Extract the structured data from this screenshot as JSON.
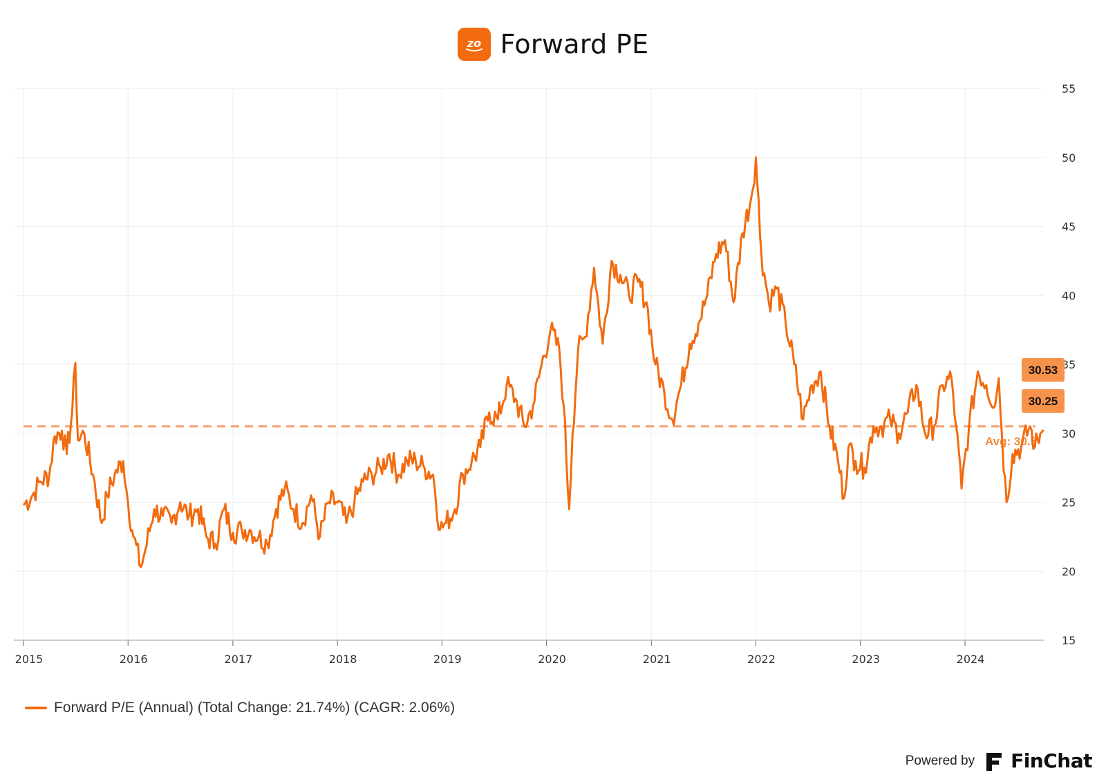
{
  "header": {
    "title": "Forward PE",
    "logo_text": "zo"
  },
  "chart_data": {
    "type": "line",
    "title": "Forward PE",
    "xlabel": "",
    "ylabel": "",
    "x_ticks": [
      "2015",
      "2016",
      "2017",
      "2018",
      "2019",
      "2020",
      "2021",
      "2022",
      "2023",
      "2024"
    ],
    "y_ticks": [
      15,
      20,
      25,
      30,
      35,
      40,
      45,
      50,
      55
    ],
    "ylim": [
      15,
      55
    ],
    "xlim": [
      "2015-01-01",
      "2024-10-15"
    ],
    "y_axis_position": "right",
    "grid": true,
    "average": {
      "value": 30.5,
      "label": "Avg: 30.5"
    },
    "end_labels": [
      30.53,
      30.25
    ],
    "series": [
      {
        "name": "Forward P/E (Annual) (Total Change: 21.74%) (CAGR: 2.06%)",
        "color": "#f26b0f",
        "points": [
          [
            "2015-01-01",
            24.8
          ],
          [
            "2015-02-01",
            25.5
          ],
          [
            "2015-03-01",
            26.5
          ],
          [
            "2015-04-01",
            27.0
          ],
          [
            "2015-04-20",
            29.8
          ],
          [
            "2015-05-15",
            30.2
          ],
          [
            "2015-06-01",
            28.5
          ],
          [
            "2015-06-20",
            31.5
          ],
          [
            "2015-07-01",
            35.1
          ],
          [
            "2015-07-10",
            29.5
          ],
          [
            "2015-08-01",
            30.0
          ],
          [
            "2015-09-01",
            27.0
          ],
          [
            "2015-10-01",
            23.5
          ],
          [
            "2015-10-20",
            25.5
          ],
          [
            "2015-11-15",
            27.0
          ],
          [
            "2015-12-15",
            28.0
          ],
          [
            "2016-01-01",
            25.0
          ],
          [
            "2016-01-20",
            22.5
          ],
          [
            "2016-02-15",
            20.3
          ],
          [
            "2016-03-01",
            21.5
          ],
          [
            "2016-04-01",
            24.5
          ],
          [
            "2016-05-01",
            24.0
          ],
          [
            "2016-06-01",
            23.5
          ],
          [
            "2016-07-01",
            25.0
          ],
          [
            "2016-08-01",
            24.0
          ],
          [
            "2016-09-01",
            24.5
          ],
          [
            "2016-10-01",
            22.5
          ],
          [
            "2016-11-01",
            22.0
          ],
          [
            "2016-12-01",
            24.5
          ],
          [
            "2017-01-01",
            22.8
          ],
          [
            "2017-02-01",
            23.0
          ],
          [
            "2017-03-01",
            23.0
          ],
          [
            "2017-04-01",
            22.5
          ],
          [
            "2017-05-01",
            22.0
          ],
          [
            "2017-06-01",
            24.5
          ],
          [
            "2017-07-01",
            26.0
          ],
          [
            "2017-08-01",
            24.5
          ],
          [
            "2017-09-01",
            23.5
          ],
          [
            "2017-10-01",
            25.5
          ],
          [
            "2017-11-01",
            22.5
          ],
          [
            "2017-12-01",
            25.0
          ],
          [
            "2018-01-01",
            25.0
          ],
          [
            "2018-02-01",
            23.5
          ],
          [
            "2018-03-01",
            25.0
          ],
          [
            "2018-04-01",
            26.5
          ],
          [
            "2018-05-01",
            27.0
          ],
          [
            "2018-06-01",
            27.5
          ],
          [
            "2018-07-01",
            28.5
          ],
          [
            "2018-08-01",
            27.0
          ],
          [
            "2018-09-01",
            28.0
          ],
          [
            "2018-10-01",
            28.0
          ],
          [
            "2018-11-01",
            27.5
          ],
          [
            "2018-12-01",
            27.0
          ],
          [
            "2018-12-25",
            23.0
          ],
          [
            "2019-01-15",
            23.5
          ],
          [
            "2019-02-15",
            24.5
          ],
          [
            "2019-03-15",
            27.0
          ],
          [
            "2019-04-15",
            28.0
          ],
          [
            "2019-05-15",
            29.0
          ],
          [
            "2019-06-15",
            31.5
          ],
          [
            "2019-07-15",
            31.0
          ],
          [
            "2019-08-15",
            33.5
          ],
          [
            "2019-09-15",
            32.5
          ],
          [
            "2019-10-15",
            30.5
          ],
          [
            "2019-11-15",
            32.0
          ],
          [
            "2019-12-15",
            35.0
          ],
          [
            "2020-01-15",
            37.5
          ],
          [
            "2020-02-15",
            36.0
          ],
          [
            "2020-03-01",
            32.0
          ],
          [
            "2020-03-20",
            24.5
          ],
          [
            "2020-04-01",
            30.0
          ],
          [
            "2020-04-20",
            36.0
          ],
          [
            "2020-05-15",
            37.0
          ],
          [
            "2020-06-15",
            42.0
          ],
          [
            "2020-07-15",
            36.5
          ],
          [
            "2020-08-15",
            42.5
          ],
          [
            "2020-09-15",
            41.5
          ],
          [
            "2020-10-15",
            40.0
          ],
          [
            "2020-11-15",
            41.0
          ],
          [
            "2020-12-15",
            39.5
          ],
          [
            "2021-01-15",
            35.0
          ],
          [
            "2021-02-15",
            33.0
          ],
          [
            "2021-03-15",
            31.0
          ],
          [
            "2021-04-15",
            33.5
          ],
          [
            "2021-05-15",
            36.5
          ],
          [
            "2021-06-15",
            38.0
          ],
          [
            "2021-07-15",
            40.0
          ],
          [
            "2021-08-15",
            43.0
          ],
          [
            "2021-09-15",
            44.0
          ],
          [
            "2021-10-15",
            39.5
          ],
          [
            "2021-11-15",
            44.5
          ],
          [
            "2021-12-15",
            47.0
          ],
          [
            "2022-01-01",
            50.0
          ],
          [
            "2022-01-20",
            43.0
          ],
          [
            "2022-02-15",
            39.5
          ],
          [
            "2022-03-15",
            40.5
          ],
          [
            "2022-04-15",
            38.0
          ],
          [
            "2022-05-15",
            35.0
          ],
          [
            "2022-06-15",
            31.0
          ],
          [
            "2022-07-15",
            33.5
          ],
          [
            "2022-08-15",
            34.5
          ],
          [
            "2022-09-15",
            30.5
          ],
          [
            "2022-10-15",
            28.0
          ],
          [
            "2022-11-05",
            25.3
          ],
          [
            "2022-11-20",
            29.0
          ],
          [
            "2022-12-15",
            28.0
          ],
          [
            "2023-01-15",
            27.5
          ],
          [
            "2023-02-15",
            30.5
          ],
          [
            "2023-03-15",
            30.5
          ],
          [
            "2023-04-15",
            31.0
          ],
          [
            "2023-05-15",
            30.0
          ],
          [
            "2023-06-15",
            31.5
          ],
          [
            "2023-07-15",
            33.5
          ],
          [
            "2023-08-15",
            30.0
          ],
          [
            "2023-09-15",
            30.5
          ],
          [
            "2023-10-15",
            33.5
          ],
          [
            "2023-11-15",
            34.0
          ],
          [
            "2023-12-01",
            30.5
          ],
          [
            "2023-12-20",
            26.0
          ],
          [
            "2024-01-15",
            30.5
          ],
          [
            "2024-02-15",
            34.5
          ],
          [
            "2024-03-15",
            33.5
          ],
          [
            "2024-04-15",
            32.0
          ],
          [
            "2024-04-28",
            34.0
          ],
          [
            "2024-05-10",
            29.5
          ],
          [
            "2024-05-25",
            25.0
          ],
          [
            "2024-06-15",
            28.5
          ],
          [
            "2024-07-15",
            29.0
          ],
          [
            "2024-08-15",
            30.5
          ],
          [
            "2024-09-01",
            29.0
          ],
          [
            "2024-09-20",
            30.0
          ],
          [
            "2024-10-01",
            30.25
          ]
        ]
      }
    ]
  },
  "legend": {
    "label": "Forward P/E (Annual) (Total Change: 21.74%) (CAGR: 2.06%)"
  },
  "footer": {
    "powered_by": "Powered by",
    "brand": "FinChat"
  }
}
